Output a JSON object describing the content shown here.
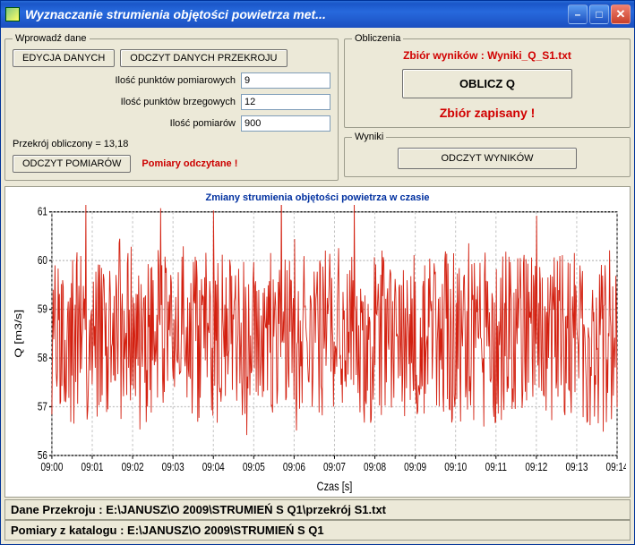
{
  "window": {
    "title": "Wyznaczanie strumienia objętości powietrza met..."
  },
  "left": {
    "legend": "Wprowadź dane",
    "edycja_btn": "EDYCJA DANYCH",
    "odczyt_przekroj_btn": "ODCZYT DANYCH PRZEKROJU",
    "punkty_pomiar_lbl": "Ilość punktów pomiarowych",
    "punkty_pomiar_val": "9",
    "punkty_brzeg_lbl": "Ilość punktów brzegowych",
    "punkty_brzeg_val": "12",
    "ilosc_pomiarow_lbl": "Ilość pomiarów",
    "ilosc_pomiarow_val": "900",
    "przekroj_lbl": "Przekrój obliczony = 13,18",
    "odczyt_pomiarow_btn": "ODCZYT POMIARÓW",
    "pomiary_status": "Pomiary odczytane !"
  },
  "calc": {
    "legend": "Obliczenia",
    "zbior_label": "Zbiór wyników : Wyniki_Q_S1.txt",
    "oblicz_btn": "OBLICZ Q",
    "zapisany": "Zbiór zapisany !"
  },
  "wyniki": {
    "legend": "Wyniki",
    "btn": "ODCZYT WYNIKÓW"
  },
  "chart": {
    "title": "Zmiany strumienia objętości powietrza w czasie",
    "ylabel": "Q [m3/s]",
    "xlabel": "Czas [s]",
    "ylim": [
      56,
      61
    ],
    "yticks": [
      56,
      57,
      58,
      59,
      60,
      61
    ],
    "xticks": [
      "09:00",
      "09:01",
      "09:02",
      "09:03",
      "09:04",
      "09:05",
      "09:06",
      "09:07",
      "09:08",
      "09:09",
      "09:10",
      "09:11",
      "09:12",
      "09:13",
      "09:14"
    ],
    "line_color": "#d32010",
    "grid_color": "#c0c0c0",
    "bg_color": "#ffffff",
    "axis_color": "#000000",
    "tick_fontsize": 10,
    "label_fontsize": 11,
    "mean": 58.4,
    "noise_amp": 2.5,
    "n_points": 900
  },
  "status": {
    "line1": "Dane Przekroju : E:\\JANUSZ\\O 2009\\STRUMIEŃ S Q1\\przekrój S1.txt",
    "line2": "Pomiary z katalogu : E:\\JANUSZ\\O 2009\\STRUMIEŃ S Q1"
  }
}
